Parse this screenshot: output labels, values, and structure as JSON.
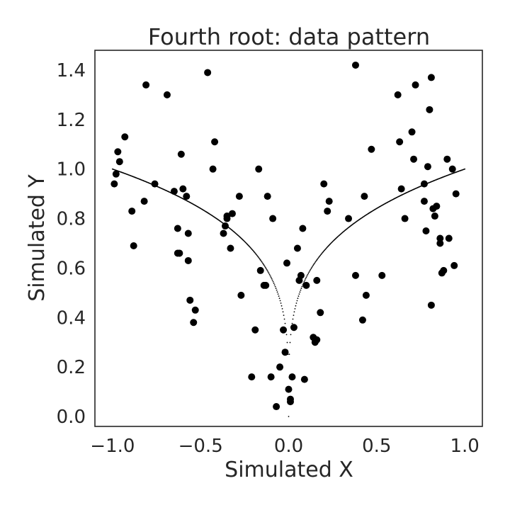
{
  "chart_data": {
    "type": "scatter",
    "title": "Fourth root: data pattern",
    "xlabel": "Simulated X",
    "ylabel": "Simulated Y",
    "xlim": [
      -1.1,
      1.1
    ],
    "ylim": [
      -0.04,
      1.48
    ],
    "x_ticks": [
      -1.0,
      -0.5,
      0.0,
      0.5,
      1.0
    ],
    "x_tick_labels": [
      "−1.0",
      "−0.5",
      "0.0",
      "0.5",
      "1.0"
    ],
    "y_ticks": [
      0.0,
      0.2,
      0.4,
      0.6,
      0.8,
      1.0,
      1.2,
      1.4
    ],
    "y_tick_labels": [
      "0.0",
      "0.2",
      "0.4",
      "0.6",
      "0.8",
      "1.0",
      "1.2",
      "1.4"
    ],
    "grid": false,
    "colors": {
      "points": "#000000",
      "curve": "#000000",
      "frame": "#262626",
      "background": "#ffffff"
    },
    "curve": {
      "function": "fourth_root_abs",
      "x_range": [
        -1.0,
        1.0
      ]
    },
    "series": [
      {
        "values": [
          [
            -0.99,
            0.94
          ],
          [
            -0.98,
            0.98
          ],
          [
            -0.97,
            1.07
          ],
          [
            -0.96,
            1.03
          ],
          [
            -0.93,
            1.13
          ],
          [
            -0.89,
            0.83
          ],
          [
            -0.88,
            0.69
          ],
          [
            -0.82,
            0.87
          ],
          [
            -0.81,
            1.34
          ],
          [
            -0.76,
            0.94
          ],
          [
            -0.69,
            1.3
          ],
          [
            -0.65,
            0.91
          ],
          [
            -0.63,
            0.66
          ],
          [
            -0.63,
            0.76
          ],
          [
            -0.62,
            0.66
          ],
          [
            -0.61,
            1.06
          ],
          [
            -0.6,
            0.92
          ],
          [
            -0.58,
            0.89
          ],
          [
            -0.57,
            0.63
          ],
          [
            -0.57,
            0.74
          ],
          [
            -0.56,
            0.47
          ],
          [
            -0.54,
            0.38
          ],
          [
            -0.53,
            0.43
          ],
          [
            -0.46,
            1.39
          ],
          [
            -0.43,
            1.0
          ],
          [
            -0.42,
            1.11
          ],
          [
            -0.37,
            0.74
          ],
          [
            -0.36,
            0.77
          ],
          [
            -0.35,
            0.8
          ],
          [
            -0.35,
            0.81
          ],
          [
            -0.33,
            0.68
          ],
          [
            -0.32,
            0.82
          ],
          [
            -0.28,
            0.89
          ],
          [
            -0.27,
            0.49
          ],
          [
            -0.21,
            0.16
          ],
          [
            -0.19,
            0.35
          ],
          [
            -0.17,
            1.0
          ],
          [
            -0.16,
            0.59
          ],
          [
            -0.14,
            0.53
          ],
          [
            -0.13,
            0.53
          ],
          [
            -0.12,
            0.89
          ],
          [
            -0.1,
            0.16
          ],
          [
            -0.09,
            0.8
          ],
          [
            -0.07,
            0.04
          ],
          [
            -0.05,
            0.2
          ],
          [
            -0.03,
            0.35
          ],
          [
            -0.02,
            0.26
          ],
          [
            -0.01,
            0.62
          ],
          [
            0.0,
            0.11
          ],
          [
            0.01,
            0.07
          ],
          [
            0.01,
            0.06
          ],
          [
            0.02,
            0.16
          ],
          [
            0.03,
            0.36
          ],
          [
            0.05,
            0.68
          ],
          [
            0.06,
            0.55
          ],
          [
            0.07,
            0.57
          ],
          [
            0.08,
            0.76
          ],
          [
            0.09,
            0.15
          ],
          [
            0.1,
            0.53
          ],
          [
            0.14,
            0.32
          ],
          [
            0.15,
            0.3
          ],
          [
            0.16,
            0.31
          ],
          [
            0.16,
            0.55
          ],
          [
            0.18,
            0.42
          ],
          [
            0.2,
            0.94
          ],
          [
            0.22,
            0.83
          ],
          [
            0.23,
            0.87
          ],
          [
            0.34,
            0.8
          ],
          [
            0.38,
            1.42
          ],
          [
            0.38,
            0.57
          ],
          [
            0.42,
            0.39
          ],
          [
            0.43,
            0.89
          ],
          [
            0.44,
            0.49
          ],
          [
            0.47,
            1.08
          ],
          [
            0.53,
            0.57
          ],
          [
            0.62,
            1.3
          ],
          [
            0.63,
            1.11
          ],
          [
            0.64,
            0.92
          ],
          [
            0.66,
            0.8
          ],
          [
            0.7,
            1.15
          ],
          [
            0.71,
            1.04
          ],
          [
            0.72,
            1.34
          ],
          [
            0.77,
            0.94
          ],
          [
            0.77,
            0.87
          ],
          [
            0.78,
            0.75
          ],
          [
            0.79,
            1.01
          ],
          [
            0.8,
            1.24
          ],
          [
            0.81,
            0.45
          ],
          [
            0.81,
            1.37
          ],
          [
            0.82,
            0.84
          ],
          [
            0.83,
            0.81
          ],
          [
            0.84,
            0.85
          ],
          [
            0.86,
            0.7
          ],
          [
            0.86,
            0.72
          ],
          [
            0.87,
            0.58
          ],
          [
            0.88,
            0.59
          ],
          [
            0.9,
            1.04
          ],
          [
            0.91,
            0.72
          ],
          [
            0.93,
            1.0
          ],
          [
            0.94,
            0.61
          ],
          [
            0.95,
            0.9
          ]
        ]
      }
    ]
  }
}
